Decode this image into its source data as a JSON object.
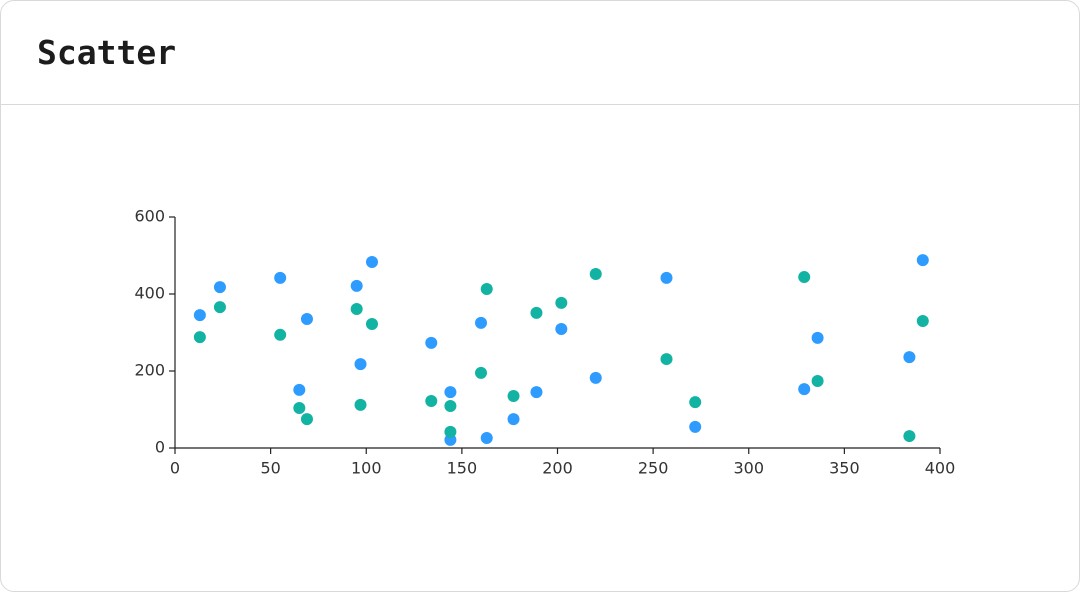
{
  "chart_data": {
    "type": "scatter",
    "title": "Scatter",
    "xlim": [
      0,
      400
    ],
    "xticks": [
      0,
      50,
      100,
      150,
      200,
      250,
      300,
      350,
      400
    ],
    "ylim": [
      0,
      600
    ],
    "yticks": [
      0,
      200,
      400,
      600
    ],
    "series": [
      {
        "color": "#2e9bff",
        "x": [
          13,
          23.5,
          55,
          69,
          65,
          95,
          97,
          103,
          134,
          144,
          144,
          160,
          163,
          177,
          189,
          202,
          220,
          257,
          272,
          329,
          336,
          384,
          391
        ],
        "values": [
          345,
          418,
          442,
          335,
          151,
          421,
          218,
          483,
          273,
          145,
          21,
          325,
          26,
          75,
          145,
          309,
          182,
          442,
          55,
          153,
          286,
          236,
          488
        ]
      },
      {
        "color": "#13b3a4",
        "x": [
          13,
          23.5,
          55,
          65,
          69,
          95,
          97,
          103,
          134,
          144,
          144,
          160,
          163,
          177,
          189,
          202,
          220,
          257,
          272,
          329,
          336,
          384,
          391
        ],
        "values": [
          288,
          366,
          294,
          104,
          75,
          361,
          112,
          322,
          122,
          109,
          42,
          195,
          413,
          135,
          351,
          377,
          452,
          231,
          119,
          444,
          174,
          31,
          330
        ]
      }
    ]
  }
}
